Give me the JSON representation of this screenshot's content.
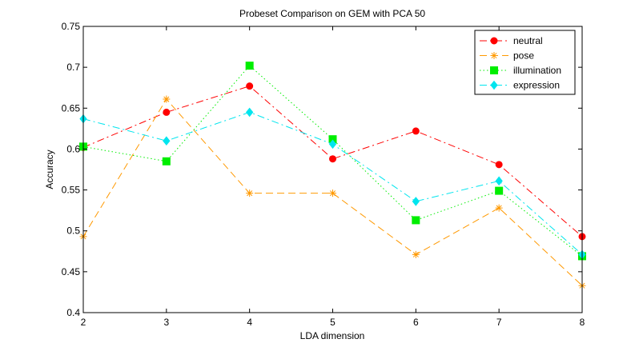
{
  "chart_data": {
    "type": "line",
    "title": "Probeset Comparison on GEM with PCA 50",
    "xlabel": "LDA dimension",
    "ylabel": "Accuracy",
    "x": [
      2,
      3,
      4,
      5,
      6,
      7,
      8
    ],
    "xlim": [
      2,
      8
    ],
    "ylim": [
      0.4,
      0.75
    ],
    "xticks": [
      "2",
      "3",
      "4",
      "5",
      "6",
      "7",
      "8"
    ],
    "yticks": [
      "0.4",
      "0.45",
      "0.5",
      "0.55",
      "0.6",
      "0.65",
      "0.7",
      "0.75"
    ],
    "grid": false,
    "legend_position": "top-right",
    "series": [
      {
        "name": "neutral",
        "color": "#ff0000",
        "marker": "circle",
        "line_style": "dashdot",
        "values": [
          0.602,
          0.645,
          0.677,
          0.588,
          0.622,
          0.581,
          0.493
        ]
      },
      {
        "name": "pose",
        "color": "#ff9900",
        "marker": "asterisk",
        "line_style": "dashed",
        "values": [
          0.493,
          0.661,
          0.546,
          0.546,
          0.471,
          0.528,
          0.433
        ]
      },
      {
        "name": "illumination",
        "color": "#00ee00",
        "marker": "square",
        "line_style": "dotted",
        "values": [
          0.603,
          0.585,
          0.702,
          0.612,
          0.513,
          0.549,
          0.469
        ]
      },
      {
        "name": "expression",
        "color": "#00e5ee",
        "marker": "diamond",
        "line_style": "dashdot",
        "values": [
          0.637,
          0.61,
          0.645,
          0.606,
          0.536,
          0.561,
          0.471
        ]
      }
    ]
  }
}
